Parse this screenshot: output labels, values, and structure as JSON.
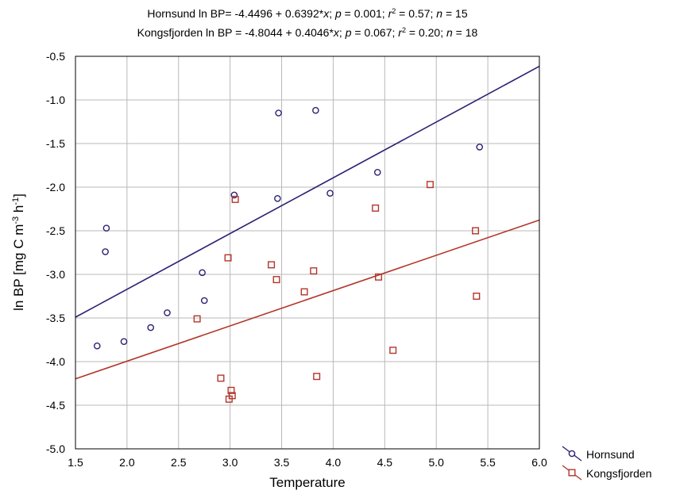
{
  "chart_data": {
    "type": "scatter",
    "title_lines": [
      [
        {
          "t": "Hornsund ln BP= -4.4496 + 0.6392*"
        },
        {
          "t": "x",
          "i": true
        },
        {
          "t": "; "
        },
        {
          "t": "p",
          "i": true
        },
        {
          "t": " = 0.001; "
        },
        {
          "t": "r",
          "i": true
        },
        {
          "t": "2",
          "sup": true
        },
        {
          "t": " = 0.57; "
        },
        {
          "t": "n",
          "i": true
        },
        {
          "t": " = 15"
        }
      ],
      [
        {
          "t": "Kongsfjorden ln BP = -4.8044 + 0.4046*"
        },
        {
          "t": "x",
          "i": true
        },
        {
          "t": "; "
        },
        {
          "t": "p",
          "i": true
        },
        {
          "t": " = 0.067; "
        },
        {
          "t": "r",
          "i": true
        },
        {
          "t": "2",
          "sup": true
        },
        {
          "t": " = 0.20; "
        },
        {
          "t": "n",
          "i": true
        },
        {
          "t": " = 18"
        }
      ]
    ],
    "xlabel": "Temperature",
    "ylabel_parts": [
      {
        "t": "ln BP [mg C m"
      },
      {
        "t": "-3",
        "sup": true
      },
      {
        "t": " h"
      },
      {
        "t": "-1",
        "sup": true
      },
      {
        "t": "]"
      }
    ],
    "xlim": [
      1.5,
      6.0
    ],
    "ylim": [
      -5.0,
      -0.5
    ],
    "xticks": [
      1.5,
      2.0,
      2.5,
      3.0,
      3.5,
      4.0,
      4.5,
      5.0,
      5.5,
      6.0
    ],
    "yticks": [
      -5.0,
      -4.5,
      -4.0,
      -3.5,
      -3.0,
      -2.5,
      -2.0,
      -1.5,
      -1.0,
      -0.5
    ],
    "grid": true,
    "legend_position": "bottom-right outside",
    "series": [
      {
        "name": "Hornsund",
        "marker": "circle",
        "color": "#2a2273",
        "fit": {
          "intercept": -4.4496,
          "slope": 0.6392
        },
        "points": [
          [
            1.71,
            -3.82
          ],
          [
            1.79,
            -2.74
          ],
          [
            1.8,
            -2.47
          ],
          [
            1.97,
            -3.77
          ],
          [
            2.23,
            -3.61
          ],
          [
            2.39,
            -3.44
          ],
          [
            2.73,
            -2.98
          ],
          [
            2.75,
            -3.3
          ],
          [
            3.04,
            -2.09
          ],
          [
            3.46,
            -2.13
          ],
          [
            3.47,
            -1.15
          ],
          [
            3.83,
            -1.12
          ],
          [
            3.97,
            -2.07
          ],
          [
            4.43,
            -1.83
          ],
          [
            5.42,
            -1.54
          ]
        ]
      },
      {
        "name": "Kongsfjorden",
        "marker": "square",
        "color": "#b3362a",
        "fit": {
          "intercept": -4.8044,
          "slope": 0.4046
        },
        "points": [
          [
            2.68,
            -3.51
          ],
          [
            2.91,
            -4.19
          ],
          [
            2.98,
            -2.81
          ],
          [
            2.99,
            -4.43
          ],
          [
            3.01,
            -4.33
          ],
          [
            3.02,
            -4.39
          ],
          [
            3.05,
            -2.14
          ],
          [
            3.4,
            -2.89
          ],
          [
            3.45,
            -3.06
          ],
          [
            3.72,
            -3.2
          ],
          [
            3.81,
            -2.96
          ],
          [
            3.84,
            -4.17
          ],
          [
            4.41,
            -2.24
          ],
          [
            4.44,
            -3.03
          ],
          [
            4.58,
            -3.87
          ],
          [
            4.94,
            -1.97
          ],
          [
            5.38,
            -2.5
          ],
          [
            5.39,
            -3.25
          ]
        ]
      }
    ]
  }
}
